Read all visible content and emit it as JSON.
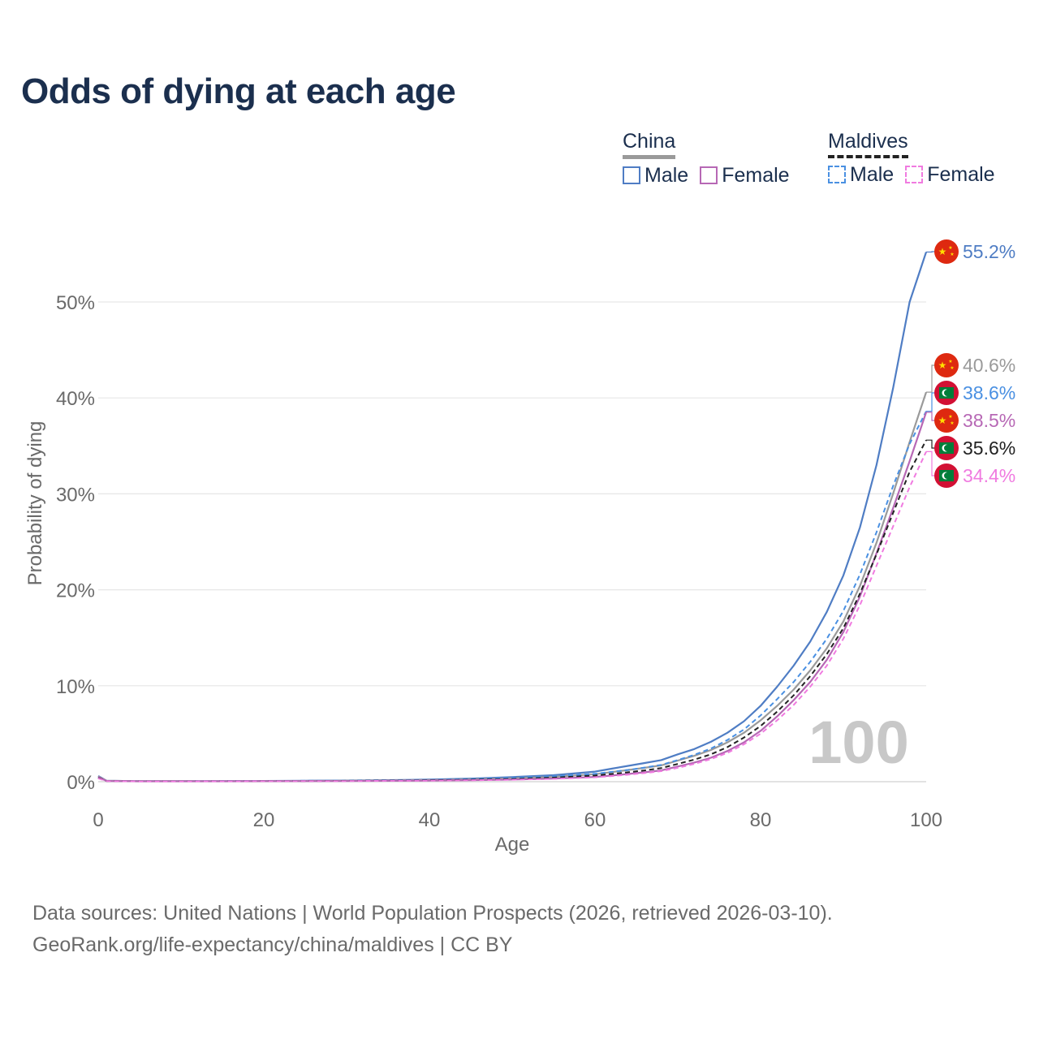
{
  "title": "Odds of dying at each age",
  "legend": {
    "china": {
      "label": "China",
      "male": "Male",
      "female": "Female"
    },
    "maldives": {
      "label": "Maldives",
      "male": "Male",
      "female": "Female"
    }
  },
  "watermark": "100",
  "colors": {
    "china_male": "#4f7dc4",
    "china_female": "#b768b5",
    "china_total": "#9a9a9a",
    "maldives_male": "#4a90e2",
    "maldives_female": "#f07be0",
    "maldives_total": "#222222",
    "flag_red": "#de2910",
    "flag_yellow": "#ffde00",
    "maldives_green": "#007e3a"
  },
  "chart_data": {
    "type": "line",
    "title": "Odds of dying at each age",
    "xlabel": "Age",
    "ylabel": "Probability of dying",
    "xlim": [
      0,
      100
    ],
    "ylim": [
      0,
      55
    ],
    "x_ticks": [
      0,
      20,
      40,
      60,
      80,
      100
    ],
    "y_ticks": [
      0,
      10,
      20,
      30,
      40,
      50
    ],
    "y_tick_labels": [
      "0%",
      "10%",
      "20%",
      "30%",
      "40%",
      "50%"
    ],
    "grid": true,
    "x": [
      0,
      1,
      5,
      10,
      15,
      20,
      25,
      30,
      35,
      40,
      45,
      50,
      55,
      60,
      62,
      64,
      66,
      68,
      70,
      72,
      74,
      76,
      78,
      80,
      82,
      84,
      86,
      88,
      90,
      92,
      94,
      96,
      98,
      100
    ],
    "series": [
      {
        "name": "China Male",
        "country": "China",
        "sex": "Male",
        "color_key": "china_male",
        "dash": false,
        "values": [
          0.6,
          0.1,
          0.05,
          0.05,
          0.06,
          0.08,
          0.1,
          0.12,
          0.16,
          0.22,
          0.32,
          0.48,
          0.68,
          1.05,
          1.35,
          1.65,
          1.95,
          2.25,
          2.85,
          3.4,
          4.15,
          5.1,
          6.3,
          7.9,
          9.9,
          12.1,
          14.6,
          17.7,
          21.5,
          26.5,
          33.0,
          41.0,
          50.0,
          55.2
        ]
      },
      {
        "name": "China Total",
        "country": "China",
        "sex": "Total",
        "color_key": "china_total",
        "dash": false,
        "values": [
          0.55,
          0.09,
          0.05,
          0.05,
          0.05,
          0.07,
          0.08,
          0.1,
          0.13,
          0.17,
          0.24,
          0.35,
          0.5,
          0.78,
          1.0,
          1.22,
          1.45,
          1.7,
          2.2,
          2.7,
          3.3,
          4.1,
          5.1,
          6.4,
          7.9,
          9.6,
          11.6,
          13.9,
          16.7,
          20.4,
          24.9,
          30.0,
          35.4,
          40.6
        ]
      },
      {
        "name": "Maldives Male",
        "country": "Maldives",
        "sex": "Male",
        "color_key": "maldives_male",
        "dash": true,
        "values": [
          0.45,
          0.08,
          0.04,
          0.04,
          0.06,
          0.08,
          0.09,
          0.11,
          0.14,
          0.19,
          0.26,
          0.38,
          0.55,
          0.82,
          1.02,
          1.23,
          1.47,
          1.75,
          2.25,
          2.8,
          3.45,
          4.35,
          5.45,
          6.9,
          8.6,
          10.4,
          12.5,
          14.9,
          17.8,
          21.6,
          26.0,
          30.8,
          35.2,
          38.6
        ]
      },
      {
        "name": "China Female",
        "country": "China",
        "sex": "Female",
        "color_key": "china_female",
        "dash": false,
        "values": [
          0.5,
          0.08,
          0.04,
          0.04,
          0.04,
          0.05,
          0.06,
          0.07,
          0.09,
          0.12,
          0.16,
          0.22,
          0.32,
          0.5,
          0.64,
          0.8,
          0.98,
          1.18,
          1.58,
          2.0,
          2.5,
          3.2,
          4.1,
          5.3,
          6.8,
          8.5,
          10.4,
          12.7,
          15.6,
          19.3,
          23.8,
          28.5,
          33.4,
          38.5
        ]
      },
      {
        "name": "Maldives Total",
        "country": "Maldives",
        "sex": "Total",
        "color_key": "maldives_total",
        "dash": true,
        "values": [
          0.4,
          0.07,
          0.04,
          0.04,
          0.05,
          0.06,
          0.07,
          0.09,
          0.11,
          0.15,
          0.2,
          0.28,
          0.42,
          0.64,
          0.8,
          0.98,
          1.18,
          1.42,
          1.85,
          2.3,
          2.85,
          3.6,
          4.6,
          5.8,
          7.3,
          9.0,
          11.0,
          13.3,
          16.0,
          19.6,
          23.7,
          28.0,
          32.3,
          35.6
        ]
      },
      {
        "name": "Maldives Female",
        "country": "Maldives",
        "sex": "Female",
        "color_key": "maldives_female",
        "dash": true,
        "values": [
          0.35,
          0.06,
          0.03,
          0.03,
          0.04,
          0.05,
          0.06,
          0.07,
          0.09,
          0.11,
          0.15,
          0.2,
          0.3,
          0.46,
          0.58,
          0.73,
          0.9,
          1.1,
          1.45,
          1.85,
          2.35,
          3.0,
          3.9,
          5.0,
          6.4,
          8.0,
          9.9,
          12.1,
          14.9,
          18.4,
          22.5,
          26.6,
          30.7,
          34.4
        ]
      }
    ],
    "end_labels": [
      {
        "text": "55.2%",
        "value": 55.2,
        "flag": "china",
        "color_key": "china_male"
      },
      {
        "text": "40.6%",
        "value": 40.6,
        "flag": "china",
        "color_key": "china_total"
      },
      {
        "text": "38.6%",
        "value": 38.6,
        "flag": "maldives",
        "color_key": "maldives_male"
      },
      {
        "text": "38.5%",
        "value": 38.5,
        "flag": "china",
        "color_key": "china_female"
      },
      {
        "text": "35.6%",
        "value": 35.6,
        "flag": "maldives",
        "color_key": "maldives_total"
      },
      {
        "text": "34.4%",
        "value": 34.4,
        "flag": "maldives",
        "color_key": "maldives_female"
      }
    ]
  },
  "footer": {
    "sources": "Data sources: United Nations | World Population Prospects (2026, retrieved 2026-03-10).",
    "attribution": "GeoRank.org/life-expectancy/china/maldives | CC BY"
  }
}
